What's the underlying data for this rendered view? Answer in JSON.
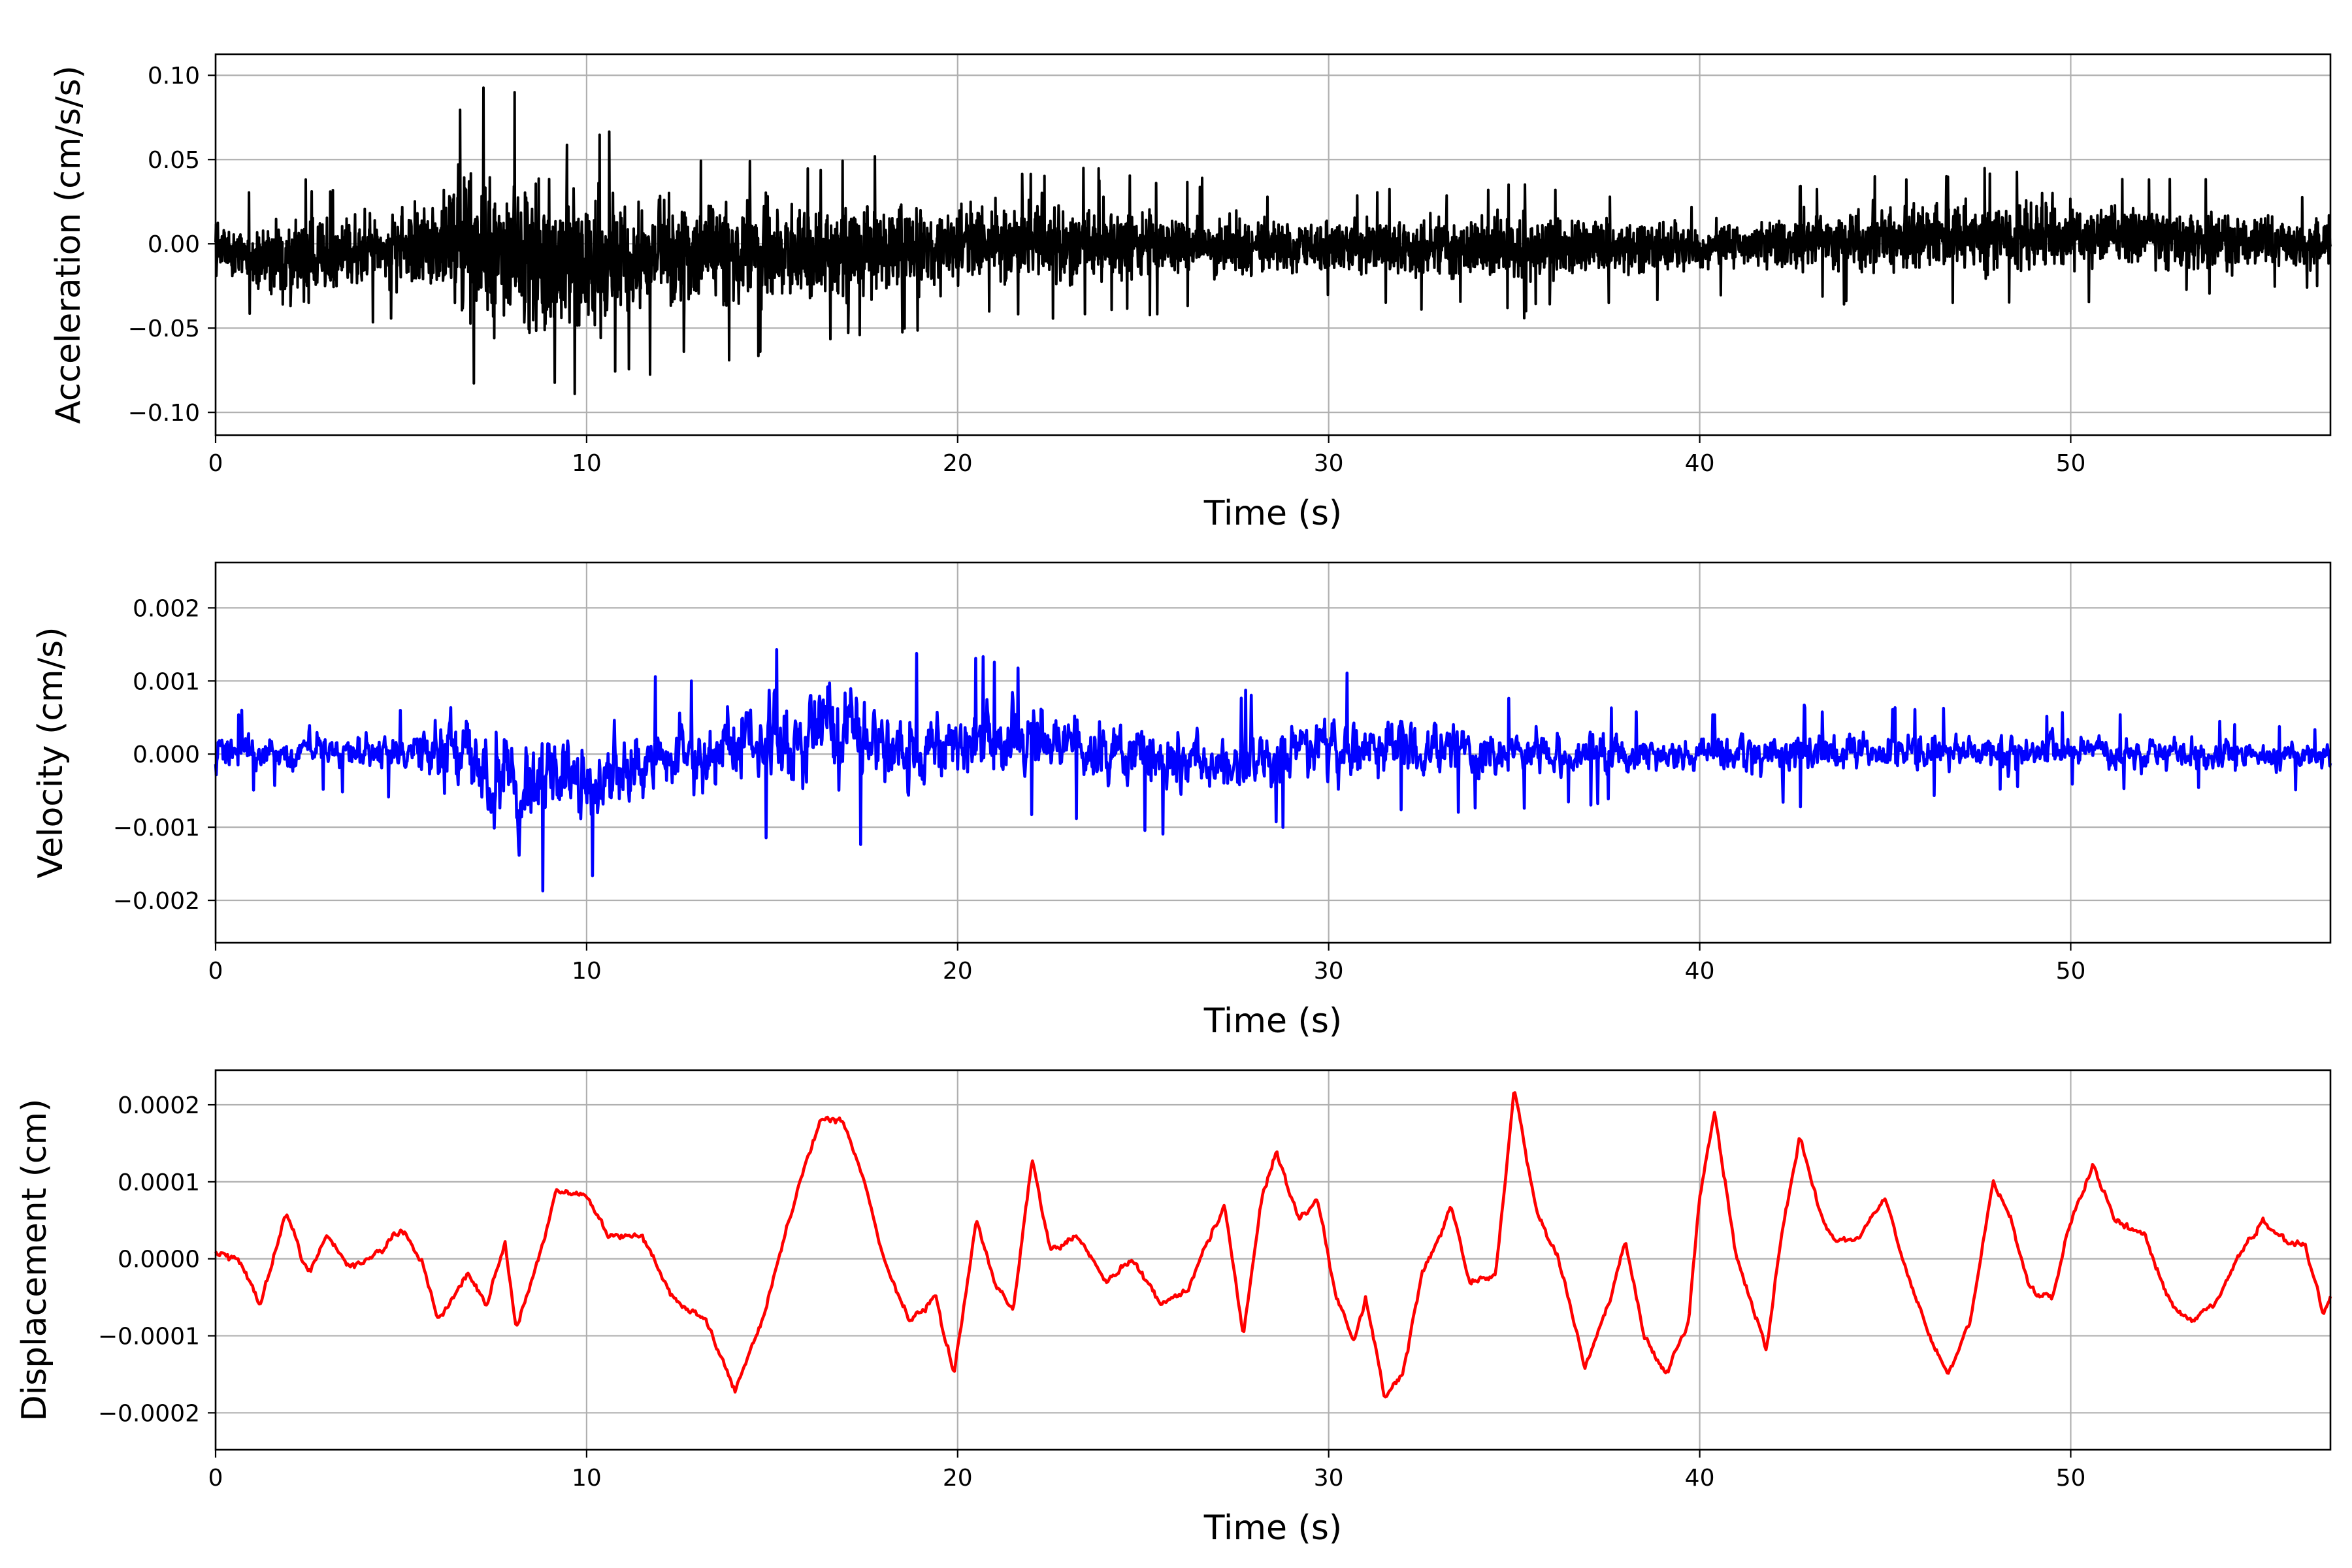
{
  "figure": {
    "background": "#ffffff",
    "grid_color": "#b0b0b0",
    "axis_color": "#000000"
  },
  "chart_data": [
    {
      "type": "line",
      "xlabel": "Time (s)",
      "ylabel": "Acceleration (cm/s/s)",
      "xlim": [
        0,
        57
      ],
      "ylim": [
        -0.1135,
        0.1125
      ],
      "grid": true,
      "color": "#000000",
      "xticks": [
        0,
        10,
        20,
        30,
        40,
        50
      ],
      "xtick_labels": [
        "0",
        "10",
        "20",
        "30",
        "40",
        "50"
      ],
      "yticks": [
        -0.1,
        -0.05,
        0.0,
        0.05,
        0.1
      ],
      "ytick_labels": [
        "−0.10",
        "−0.05",
        "0.00",
        "0.05",
        "0.10"
      ],
      "envelope": [
        {
          "t": 0,
          "max": 0.03,
          "min": -0.035
        },
        {
          "t": 2,
          "max": 0.04,
          "min": -0.06
        },
        {
          "t": 5,
          "max": 0.04,
          "min": -0.045
        },
        {
          "t": 6.5,
          "max": 0.085,
          "min": -0.08
        },
        {
          "t": 7.5,
          "max": 0.096,
          "min": -0.103
        },
        {
          "t": 10,
          "max": 0.07,
          "min": -0.097
        },
        {
          "t": 12.5,
          "max": 0.06,
          "min": -0.07
        },
        {
          "t": 16,
          "max": 0.055,
          "min": -0.068
        },
        {
          "t": 20,
          "max": 0.05,
          "min": -0.05
        },
        {
          "t": 25,
          "max": 0.045,
          "min": -0.045
        },
        {
          "t": 30,
          "max": 0.03,
          "min": -0.035
        },
        {
          "t": 35,
          "max": 0.04,
          "min": -0.045
        },
        {
          "t": 40,
          "max": 0.025,
          "min": -0.03
        },
        {
          "t": 45.8,
          "max": 0.047,
          "min": -0.04
        },
        {
          "t": 51,
          "max": 0.045,
          "min": -0.035
        },
        {
          "t": 57,
          "max": 0.03,
          "min": -0.03
        }
      ]
    },
    {
      "type": "line",
      "xlabel": "Time (s)",
      "ylabel": "Velocity (cm/s)",
      "xlim": [
        0,
        57
      ],
      "ylim": [
        -0.00258,
        0.00262
      ],
      "grid": true,
      "color": "#0000ff",
      "xticks": [
        0,
        10,
        20,
        30,
        40,
        50
      ],
      "xtick_labels": [
        "0",
        "10",
        "20",
        "30",
        "40",
        "50"
      ],
      "yticks": [
        -0.002,
        -0.001,
        0.0,
        0.001,
        0.002
      ],
      "ytick_labels": [
        "−0.002",
        "−0.001",
        "0.000",
        "0.001",
        "0.002"
      ],
      "envelope": [
        {
          "t": 0,
          "max": 0.0006,
          "min": -0.0005
        },
        {
          "t": 5,
          "max": 0.0006,
          "min": -0.0006
        },
        {
          "t": 6.5,
          "max": 0.0015,
          "min": -0.0014
        },
        {
          "t": 7.5,
          "max": 0.0015,
          "min": -0.0023
        },
        {
          "t": 10.2,
          "max": 0.0012,
          "min": -0.0018
        },
        {
          "t": 12.5,
          "max": 0.0011,
          "min": -0.0011
        },
        {
          "t": 16.3,
          "max": 0.0018,
          "min": -0.0013
        },
        {
          "t": 18.8,
          "max": 0.0014,
          "min": -0.0012
        },
        {
          "t": 22,
          "max": 0.0013,
          "min": -0.0009
        },
        {
          "t": 27.3,
          "max": 0.0008,
          "min": -0.0012
        },
        {
          "t": 29.7,
          "max": 0.0012,
          "min": -0.0009
        },
        {
          "t": 35,
          "max": 0.0008,
          "min": -0.0008
        },
        {
          "t": 40,
          "max": 0.0006,
          "min": -0.0006
        },
        {
          "t": 42.3,
          "max": 0.0007,
          "min": -0.0008
        },
        {
          "t": 50,
          "max": 0.0006,
          "min": -0.0005
        },
        {
          "t": 57,
          "max": 0.0004,
          "min": -0.0005
        }
      ]
    },
    {
      "type": "line",
      "xlabel": "Time (s)",
      "ylabel": "Displacement (cm)",
      "xlim": [
        0,
        57
      ],
      "ylim": [
        -0.000248,
        0.000245
      ],
      "grid": true,
      "color": "#ff0000",
      "xticks": [
        0,
        10,
        20,
        30,
        40,
        50
      ],
      "xtick_labels": [
        "0",
        "10",
        "20",
        "30",
        "40",
        "50"
      ],
      "yticks": [
        -0.0002,
        -0.0001,
        0.0,
        0.0001,
        0.0002
      ],
      "ytick_labels": [
        "−0.0002",
        "−0.0001",
        "0.0000",
        "0.0001",
        "0.0002"
      ],
      "anchors": [
        {
          "t": 0,
          "y": 1e-05
        },
        {
          "t": 0.6,
          "y": 0.0
        },
        {
          "t": 1.2,
          "y": -6e-05
        },
        {
          "t": 1.9,
          "y": 6e-05
        },
        {
          "t": 2.5,
          "y": -2e-05
        },
        {
          "t": 3.0,
          "y": 3e-05
        },
        {
          "t": 3.6,
          "y": -1e-05
        },
        {
          "t": 4.5,
          "y": 1e-05
        },
        {
          "t": 5.0,
          "y": 4e-05
        },
        {
          "t": 5.6,
          "y": -1e-05
        },
        {
          "t": 6.0,
          "y": -8e-05
        },
        {
          "t": 6.8,
          "y": -2e-05
        },
        {
          "t": 7.3,
          "y": -6e-05
        },
        {
          "t": 7.8,
          "y": 2e-05
        },
        {
          "t": 8.1,
          "y": -9e-05
        },
        {
          "t": 8.7,
          "y": 0.0
        },
        {
          "t": 9.2,
          "y": 9e-05
        },
        {
          "t": 10.0,
          "y": 8e-05
        },
        {
          "t": 10.6,
          "y": 3e-05
        },
        {
          "t": 11.5,
          "y": 3e-05
        },
        {
          "t": 12.3,
          "y": -5e-05
        },
        {
          "t": 13.2,
          "y": -8e-05
        },
        {
          "t": 14.0,
          "y": -0.00017
        },
        {
          "t": 14.8,
          "y": -7e-05
        },
        {
          "t": 15.4,
          "y": 4e-05
        },
        {
          "t": 15.8,
          "y": 0.00011
        },
        {
          "t": 16.3,
          "y": 0.00018
        },
        {
          "t": 16.9,
          "y": 0.00018
        },
        {
          "t": 17.5,
          "y": 0.0001
        },
        {
          "t": 18.0,
          "y": 0.0
        },
        {
          "t": 18.7,
          "y": -8e-05
        },
        {
          "t": 19.4,
          "y": -5e-05
        },
        {
          "t": 19.9,
          "y": -0.00015
        },
        {
          "t": 20.5,
          "y": 5e-05
        },
        {
          "t": 21.0,
          "y": -3e-05
        },
        {
          "t": 21.5,
          "y": -7e-05
        },
        {
          "t": 22.0,
          "y": 0.00013
        },
        {
          "t": 22.5,
          "y": 1e-05
        },
        {
          "t": 23.2,
          "y": 3e-05
        },
        {
          "t": 24.0,
          "y": -3e-05
        },
        {
          "t": 24.7,
          "y": 0.0
        },
        {
          "t": 25.5,
          "y": -6e-05
        },
        {
          "t": 26.2,
          "y": -4e-05
        },
        {
          "t": 26.8,
          "y": 3e-05
        },
        {
          "t": 27.2,
          "y": 7e-05
        },
        {
          "t": 27.7,
          "y": -0.0001
        },
        {
          "t": 28.2,
          "y": 8e-05
        },
        {
          "t": 28.6,
          "y": 0.00014
        },
        {
          "t": 29.2,
          "y": 5e-05
        },
        {
          "t": 29.7,
          "y": 8e-05
        },
        {
          "t": 30.2,
          "y": -5e-05
        },
        {
          "t": 30.7,
          "y": -0.00011
        },
        {
          "t": 31.0,
          "y": -5e-05
        },
        {
          "t": 31.5,
          "y": -0.00018
        },
        {
          "t": 32.0,
          "y": -0.00015
        },
        {
          "t": 32.5,
          "y": -2e-05
        },
        {
          "t": 33.0,
          "y": 3e-05
        },
        {
          "t": 33.3,
          "y": 7e-05
        },
        {
          "t": 33.8,
          "y": -3e-05
        },
        {
          "t": 34.5,
          "y": -2e-05
        },
        {
          "t": 35.0,
          "y": 0.00022
        },
        {
          "t": 35.6,
          "y": 6e-05
        },
        {
          "t": 36.2,
          "y": 0.0
        },
        {
          "t": 36.9,
          "y": -0.00014
        },
        {
          "t": 37.6,
          "y": -5e-05
        },
        {
          "t": 38.0,
          "y": 2e-05
        },
        {
          "t": 38.5,
          "y": -0.0001
        },
        {
          "t": 39.1,
          "y": -0.00015
        },
        {
          "t": 39.7,
          "y": -8e-05
        },
        {
          "t": 40.0,
          "y": 8e-05
        },
        {
          "t": 40.4,
          "y": 0.00019
        },
        {
          "t": 41.0,
          "y": 0.0
        },
        {
          "t": 41.8,
          "y": -0.00012
        },
        {
          "t": 42.2,
          "y": 3e-05
        },
        {
          "t": 42.7,
          "y": 0.00016
        },
        {
          "t": 43.3,
          "y": 5e-05
        },
        {
          "t": 43.7,
          "y": 2e-05
        },
        {
          "t": 44.3,
          "y": 3e-05
        },
        {
          "t": 45.0,
          "y": 8e-05
        },
        {
          "t": 45.6,
          "y": -2e-05
        },
        {
          "t": 46.2,
          "y": -0.0001
        },
        {
          "t": 46.7,
          "y": -0.00015
        },
        {
          "t": 47.3,
          "y": -8e-05
        },
        {
          "t": 47.9,
          "y": 0.0001
        },
        {
          "t": 48.4,
          "y": 5e-05
        },
        {
          "t": 48.9,
          "y": -4e-05
        },
        {
          "t": 49.5,
          "y": -5e-05
        },
        {
          "t": 50.0,
          "y": 5e-05
        },
        {
          "t": 50.6,
          "y": 0.00012
        },
        {
          "t": 51.2,
          "y": 5e-05
        },
        {
          "t": 52.0,
          "y": 3e-05
        },
        {
          "t": 52.7,
          "y": -6e-05
        },
        {
          "t": 53.3,
          "y": -8e-05
        },
        {
          "t": 54.0,
          "y": -5e-05
        },
        {
          "t": 54.6,
          "y": 1e-05
        },
        {
          "t": 55.2,
          "y": 5e-05
        },
        {
          "t": 55.8,
          "y": 2e-05
        },
        {
          "t": 56.3,
          "y": 2e-05
        },
        {
          "t": 56.8,
          "y": -7e-05
        },
        {
          "t": 57.0,
          "y": -5e-05
        }
      ]
    }
  ]
}
